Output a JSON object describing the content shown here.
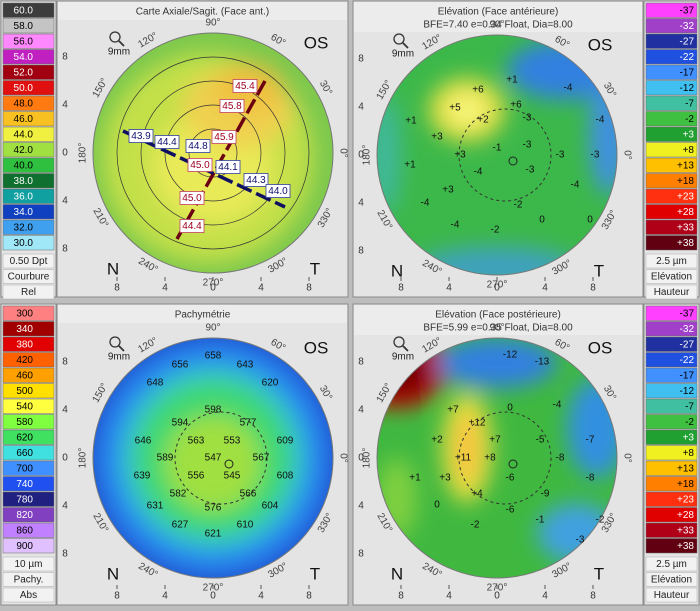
{
  "common": {
    "zoom": "9mm",
    "eye": "OS",
    "nasal": "N",
    "temporal": "T",
    "degrees": [
      "90°",
      "60°",
      "30°",
      "0°",
      "330°",
      "300°",
      "270°",
      "240°",
      "210°",
      "180°",
      "150°",
      "120°"
    ],
    "ticks": [
      8,
      4,
      0,
      4,
      8
    ]
  },
  "panels": [
    {
      "title": "Carte Axiale/Sagit. (Face ant.)",
      "scale": {
        "labels": [
          "60.0",
          "58.0",
          "56.0",
          "54.0",
          "52.0",
          "50.0",
          "48.0",
          "46.0",
          "44.0",
          "42.0",
          "40.0",
          "38.0",
          "36.0",
          "34.0",
          "32.0",
          "30.0"
        ],
        "colors": [
          "#3c3c3c",
          "#c4c4c4",
          "#ff88ff",
          "#c020c0",
          "#a00010",
          "#e01010",
          "#ff7a10",
          "#f8c020",
          "#f0f040",
          "#a0e040",
          "#30c040",
          "#107030",
          "#10a0a0",
          "#1040c0",
          "#40a0f0",
          "#a0e8f8"
        ],
        "footer": [
          "0.50 Dpt",
          "Courbure",
          "Rel"
        ]
      },
      "map_values": [
        "45.4",
        "45.8",
        "43.9",
        "44.4",
        "44.8",
        "45.9",
        "45.0",
        "44.1",
        "44.3",
        "44.0",
        "45.0",
        "44.4"
      ]
    },
    {
      "title": "Elévation (Face antérieure)",
      "subtitle": "BFE=7.40 e=0.34 Float, Dia=8.00",
      "scale": {
        "labels": [
          "-37",
          "-32",
          "-27",
          "-22",
          "-17",
          "-12",
          "-7",
          "-2",
          "+3",
          "+8",
          "+13",
          "+18",
          "+23",
          "+28",
          "+33",
          "+38"
        ],
        "colors": [
          "#ff40ff",
          "#a040c8",
          "#2030a0",
          "#2050e0",
          "#4090ff",
          "#40c0f0",
          "#40c0a0",
          "#40c040",
          "#20a030",
          "#f0f020",
          "#ffc000",
          "#ff8000",
          "#ff3010",
          "#e00000",
          "#b00018",
          "#600010"
        ],
        "footer": [
          "2.5 µm",
          "Elévation",
          "Hauteur"
        ]
      },
      "map_values": [
        "+1",
        "+6",
        "-4",
        "+5",
        "+6",
        "+2",
        "-4",
        "+1",
        "-3",
        "+3",
        "+3",
        "-1",
        "-3",
        "-3",
        "-3",
        "+1",
        "-4",
        "-3",
        "+3",
        "-4",
        "-4",
        "-2",
        "0",
        "-4",
        "-2",
        "0"
      ]
    },
    {
      "title": "Pachymétrie",
      "scale": {
        "labels": [
          300,
          340,
          380,
          420,
          460,
          500,
          540,
          580,
          620,
          660,
          700,
          740,
          780,
          820,
          860,
          900
        ],
        "colors": [
          "#ff8080",
          "#a00000",
          "#e00000",
          "#ff6000",
          "#ffa000",
          "#ffe000",
          "#ffff40",
          "#80ff40",
          "#40e060",
          "#40e0e0",
          "#4090ff",
          "#2050f0",
          "#202080",
          "#8040c0",
          "#c080ff",
          "#e0c0ff"
        ],
        "footer": [
          "10 µm",
          "Pachy.",
          "Abs"
        ]
      },
      "map_values": [
        656,
        658,
        643,
        648,
        598,
        620,
        594,
        577,
        646,
        563,
        553,
        609,
        589,
        547,
        567,
        639,
        556,
        545,
        608,
        582,
        566,
        631,
        576,
        604,
        627,
        610,
        621
      ]
    },
    {
      "title": "Elévation (Face postérieure)",
      "subtitle": "BFE=5.99 e=0.35 Float, Dia=8.00",
      "scale": {
        "labels": [
          "-37",
          "-32",
          "-27",
          "-22",
          "-17",
          "-12",
          "-7",
          "-2",
          "+3",
          "+8",
          "+13",
          "+18",
          "+23",
          "+28",
          "+33",
          "+38"
        ],
        "colors": [
          "#ff40ff",
          "#a040c8",
          "#2030a0",
          "#2050e0",
          "#4090ff",
          "#40c0f0",
          "#40c0a0",
          "#40c040",
          "#20a030",
          "#f0f020",
          "#ffc000",
          "#ff8000",
          "#ff3010",
          "#e00000",
          "#b00018",
          "#600010"
        ],
        "footer": [
          "2.5 µm",
          "Elévation",
          "Hauteur"
        ]
      },
      "map_values": [
        "-12",
        "-13",
        "+7",
        "0",
        "-4",
        "+12",
        "+2",
        "+7",
        "-5",
        "-7",
        "+11",
        "+8",
        "-8",
        "+1",
        "+3",
        "-6",
        "-8",
        "+4",
        "-9",
        "0",
        "-6",
        "-2",
        "-1",
        "-2",
        "-3"
      ]
    }
  ]
}
